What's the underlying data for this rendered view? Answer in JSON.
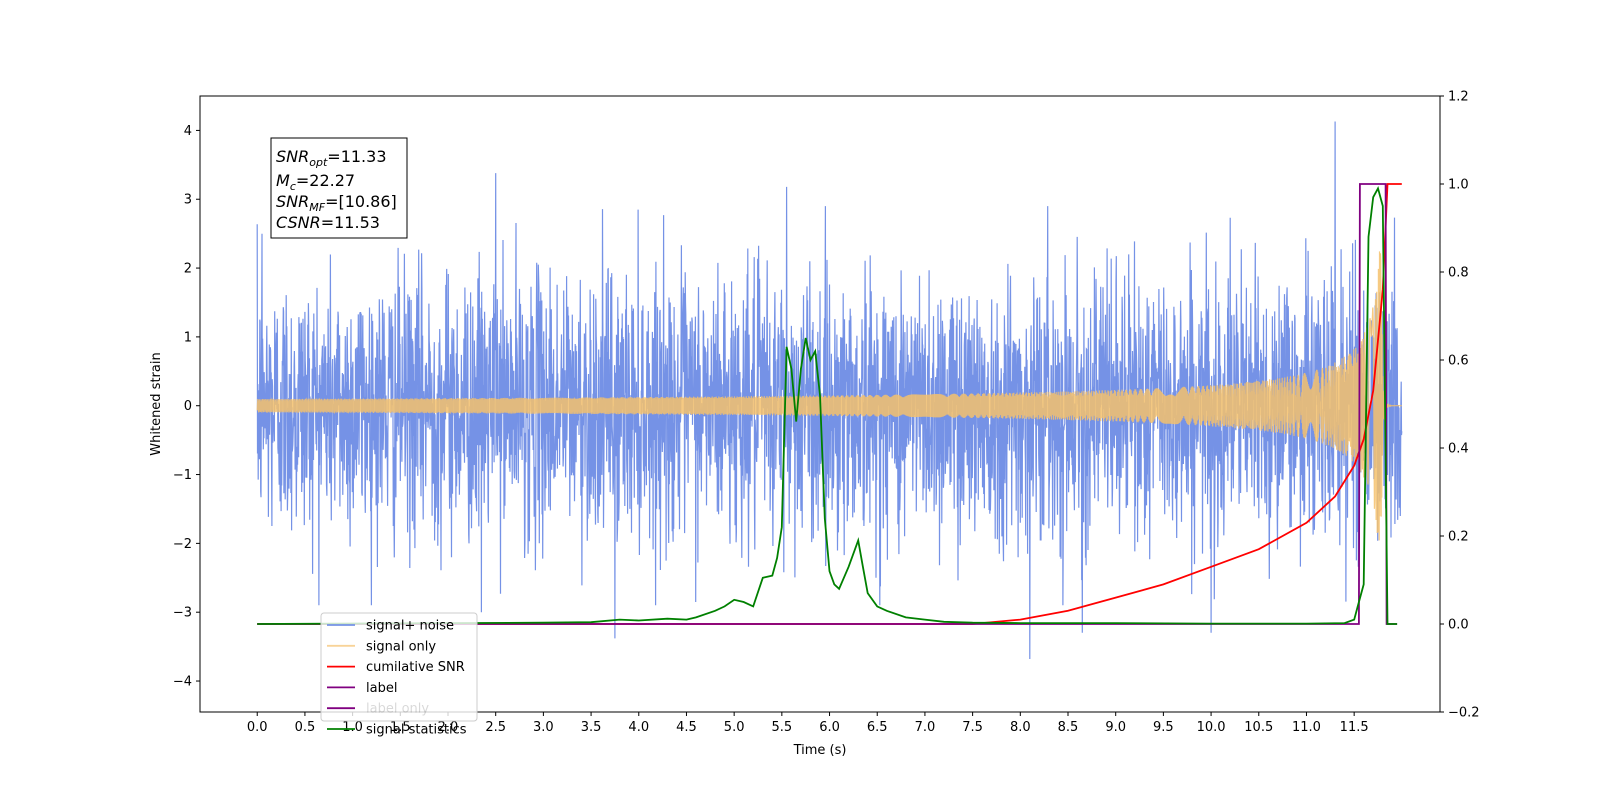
{
  "chart_data": {
    "type": "line",
    "xlabel": "Time (s)",
    "ylabel": "Whitened strain",
    "xlim": [
      -0.6,
      12.4
    ],
    "ylim": [
      -4.45,
      4.5
    ],
    "y2lim": [
      -0.2,
      1.2
    ],
    "x_ticks": [
      "0.0",
      "0.5",
      "1.0",
      "1.5",
      "2.0",
      "2.5",
      "3.0",
      "3.5",
      "4.0",
      "4.5",
      "5.0",
      "5.5",
      "6.0",
      "6.5",
      "7.0",
      "7.5",
      "8.0",
      "8.5",
      "9.0",
      "9.5",
      "10.0",
      "10.5",
      "11.0",
      "11.5"
    ],
    "y_ticks": [
      "−4",
      "−3",
      "−2",
      "−1",
      "0",
      "1",
      "2",
      "3",
      "4"
    ],
    "y2_ticks": [
      "−0.2",
      "0.0",
      "0.2",
      "0.4",
      "0.6",
      "0.8",
      "1.0",
      "1.2"
    ],
    "grid": false,
    "legend_placement": "lower-left",
    "annotation": {
      "line1_sym": "SNR",
      "line1_sub": "opt",
      "line1_val": "=11.33",
      "line2_sym": "M",
      "line2_sub": "c",
      "line2_val": "=22.27",
      "line3_sym": "SNR",
      "line3_sub": "MF",
      "line3_val": "=[10.86]",
      "line4_sym": "CSNR",
      "line4_val": "=11.53"
    },
    "series": [
      {
        "name": "signal+ noise",
        "axis": "left",
        "color": "#7592e6",
        "description_values": "whitened noise samples spanning roughly -2.5 to 2.5 with spikes up to 4.1 and down to -3.7",
        "x_range": [
          0.0,
          12.0
        ],
        "noise_std": 0.95,
        "spikes": [
          [
            0.05,
            2.5
          ],
          [
            2.5,
            3.38
          ],
          [
            5.55,
            3.18
          ],
          [
            11.3,
            4.13
          ],
          [
            3.75,
            -3.38
          ],
          [
            8.1,
            -3.68
          ],
          [
            2.35,
            -3.0
          ],
          [
            8.65,
            -3.3
          ],
          [
            10.0,
            -3.3
          ]
        ]
      },
      {
        "name": "signal only",
        "axis": "left",
        "color": "#f5c16c",
        "description_values": "chirp waveform whose amplitude grows from 0 to about 2.6 near t=11.75 then drops to 0",
        "x_range": [
          0.0,
          12.0
        ],
        "peak_time": 11.78,
        "peak_amplitude": 2.6
      },
      {
        "name": "cumilative SNR",
        "axis": "right",
        "color": "#ff0000",
        "x": [
          0.0,
          7.5,
          8.0,
          8.5,
          9.0,
          9.5,
          10.0,
          10.5,
          11.0,
          11.3,
          11.5,
          11.6,
          11.7,
          11.8,
          11.85,
          12.0
        ],
        "values": [
          0.0,
          0.0,
          0.01,
          0.03,
          0.06,
          0.09,
          0.13,
          0.17,
          0.23,
          0.29,
          0.36,
          0.42,
          0.53,
          0.76,
          1.0,
          1.0
        ]
      },
      {
        "name": "label",
        "axis": "right",
        "color": "#800080",
        "x": [
          0.0,
          11.55,
          11.56,
          11.83,
          11.84,
          11.95
        ],
        "values": [
          0.0,
          0.0,
          1.0,
          1.0,
          0.0,
          0.0
        ]
      },
      {
        "name": "label only",
        "axis": "right",
        "color": "#800080",
        "hidden_in_legend_overlap": true,
        "x": [],
        "values": []
      },
      {
        "name": "signal statistics",
        "axis": "right",
        "color": "#008000",
        "x": [
          0.0,
          3.0,
          3.5,
          3.8,
          4.0,
          4.3,
          4.5,
          4.6,
          4.8,
          4.9,
          5.0,
          5.1,
          5.2,
          5.3,
          5.4,
          5.45,
          5.5,
          5.55,
          5.6,
          5.65,
          5.7,
          5.75,
          5.8,
          5.85,
          5.9,
          5.95,
          6.0,
          6.05,
          6.1,
          6.2,
          6.3,
          6.35,
          6.4,
          6.5,
          6.6,
          6.8,
          7.0,
          7.2,
          7.5,
          8.0,
          9.0,
          10.0,
          11.0,
          11.4,
          11.5,
          11.55,
          11.6,
          11.65,
          11.7,
          11.75,
          11.8,
          11.85,
          11.95
        ],
        "values": [
          0.0,
          0.003,
          0.004,
          0.01,
          0.008,
          0.012,
          0.01,
          0.015,
          0.03,
          0.04,
          0.055,
          0.05,
          0.04,
          0.105,
          0.11,
          0.15,
          0.22,
          0.63,
          0.58,
          0.46,
          0.58,
          0.65,
          0.6,
          0.62,
          0.52,
          0.24,
          0.12,
          0.09,
          0.08,
          0.13,
          0.19,
          0.13,
          0.07,
          0.04,
          0.03,
          0.015,
          0.01,
          0.005,
          0.003,
          0.002,
          0.002,
          0.001,
          0.001,
          0.002,
          0.01,
          0.05,
          0.09,
          0.88,
          0.97,
          0.99,
          0.95,
          0.0,
          0.0
        ]
      }
    ]
  }
}
